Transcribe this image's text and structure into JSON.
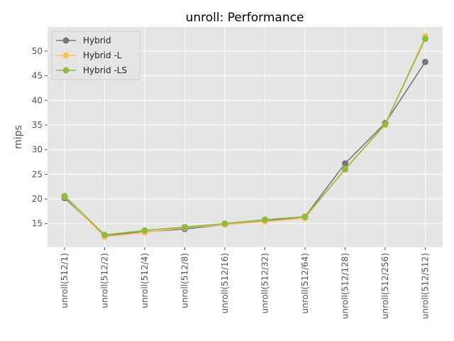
{
  "chart_data": {
    "type": "line",
    "title": "unroll: Performance",
    "xlabel": "",
    "ylabel": "mips",
    "categories": [
      "unroll(512/1)",
      "unroll(512/2)",
      "unroll(512/4)",
      "unroll(512/8)",
      "unroll(512/16)",
      "unroll(512/32)",
      "unroll(512/64)",
      "unroll(512/128)",
      "unroll(512/256)",
      "unroll(512/512)"
    ],
    "ylim": [
      10.2,
      54.9
    ],
    "yticks": [
      15,
      20,
      25,
      30,
      35,
      40,
      45,
      50
    ],
    "grid": true,
    "legend_position": "top-left",
    "series": [
      {
        "name": "Hybrid",
        "color": "#777777",
        "values": [
          20.2,
          12.6,
          13.3,
          13.9,
          14.8,
          15.5,
          16.4,
          27.2,
          35.4,
          47.8
        ]
      },
      {
        "name": "Hybrid -L",
        "color": "#fbc15e",
        "values": [
          20.5,
          12.3,
          13.2,
          14.2,
          14.8,
          15.4,
          16.1,
          26.1,
          35.0,
          53.0
        ]
      },
      {
        "name": "Hybrid -LS",
        "color": "#8eba42",
        "values": [
          20.6,
          12.7,
          13.6,
          14.3,
          15.0,
          15.8,
          16.4,
          26.0,
          35.2,
          52.5
        ]
      }
    ]
  }
}
